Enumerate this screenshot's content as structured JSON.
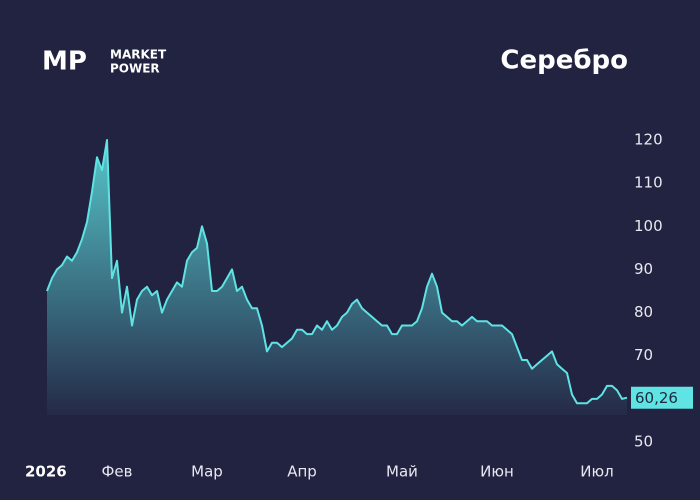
{
  "chart_data": {
    "type": "area",
    "title": "Серебро",
    "brand_mark": "MP",
    "brand_name": [
      "MARKET",
      "POWER"
    ],
    "color": "#5fe3e3",
    "values": [
      85,
      88,
      90,
      91,
      93,
      92,
      94,
      97,
      101,
      108,
      116,
      113,
      120,
      88,
      92,
      80,
      86,
      77,
      83,
      85,
      86,
      84,
      85,
      80,
      83,
      85,
      87,
      86,
      92,
      94,
      95,
      100,
      96,
      85,
      85,
      86,
      88,
      90,
      85,
      86,
      83,
      81,
      81,
      77,
      71,
      73,
      73,
      72,
      73,
      74,
      76,
      76,
      75,
      75,
      77,
      76,
      78,
      76,
      77,
      79,
      80,
      82,
      83,
      81,
      80,
      79,
      78,
      77,
      77,
      75,
      75,
      77,
      77,
      77,
      78,
      81,
      86,
      89,
      86,
      80,
      79,
      78,
      78,
      77,
      78,
      79,
      78,
      78,
      78,
      77,
      77,
      77,
      76,
      75,
      72,
      69,
      69,
      67,
      68,
      69,
      70,
      71,
      68,
      67,
      66,
      61,
      59,
      59,
      59,
      60,
      60,
      61,
      63,
      63,
      62,
      60,
      60.26
    ],
    "last_value_label": "60,26",
    "xlim": [
      0,
      116
    ],
    "xticks": [
      {
        "value": 0,
        "label": "2026"
      },
      {
        "value": 14,
        "label": "Фев"
      },
      {
        "value": 32,
        "label": "Мар"
      },
      {
        "value": 51,
        "label": "Апр"
      },
      {
        "value": 71,
        "label": "Май"
      },
      {
        "value": 90,
        "label": "Июн"
      },
      {
        "value": 110,
        "label": "Июл"
      }
    ],
    "ylim": [
      50,
      120
    ],
    "yticks": [
      50,
      60,
      70,
      80,
      90,
      100,
      110,
      120
    ]
  }
}
